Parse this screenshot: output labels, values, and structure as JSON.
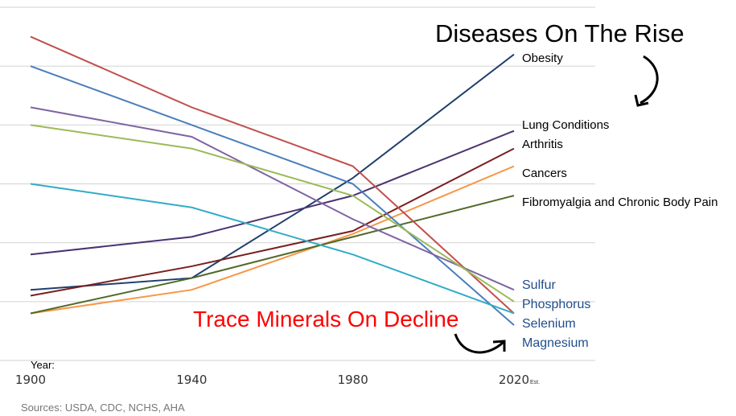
{
  "chart_data": {
    "type": "line",
    "x": [
      1900,
      1940,
      1980,
      2020
    ],
    "xtick_labels": [
      "1900",
      "1940",
      "1980",
      "2020"
    ],
    "xlabel": "Year:",
    "x_note": "Est.",
    "ylim": [
      0,
      6
    ],
    "grid": true,
    "title_rise": "Diseases On The Rise",
    "title_decline": "Trace Minerals On Decline",
    "source": "Sources: USDA, CDC, NCHS, AHA",
    "series": [
      {
        "name": "Obesity",
        "color": "#1f3f6e",
        "values": [
          1.2,
          1.4,
          3.1,
          5.2
        ]
      },
      {
        "name": "Lung Conditions",
        "color": "#4b3270",
        "values": [
          1.8,
          2.1,
          2.8,
          3.9
        ]
      },
      {
        "name": "Arthritis",
        "color": "#7a1f1f",
        "values": [
          1.1,
          1.6,
          2.2,
          3.6
        ]
      },
      {
        "name": "Cancers",
        "color": "#f79646",
        "values": [
          0.8,
          1.2,
          2.15,
          3.3
        ]
      },
      {
        "name": "Fibromyalgia and Chronic Body Pain",
        "color": "#4f6b28",
        "values": [
          0.8,
          1.4,
          2.1,
          2.8
        ]
      },
      {
        "color": "#c0504d",
        "values": [
          5.5,
          4.3,
          3.3,
          0.8
        ]
      },
      {
        "color": "#4a7ebb",
        "values": [
          5.0,
          4.0,
          3.0,
          0.6
        ]
      },
      {
        "color": "#8064a2",
        "values": [
          4.3,
          3.8,
          2.4,
          1.2
        ]
      },
      {
        "color": "#9bbb59",
        "values": [
          4.0,
          3.6,
          2.8,
          1.0
        ]
      },
      {
        "color": "#31acc6",
        "values": [
          3.0,
          2.6,
          1.8,
          0.8
        ]
      }
    ],
    "mineral_labels": [
      "Sulfur",
      "Phosphorus",
      "Selenium",
      "Magnesium"
    ],
    "colors": {
      "decline_title": "#ff0000",
      "mineral_label": "#1f4e8c",
      "grid": "#d9d9d9"
    }
  }
}
